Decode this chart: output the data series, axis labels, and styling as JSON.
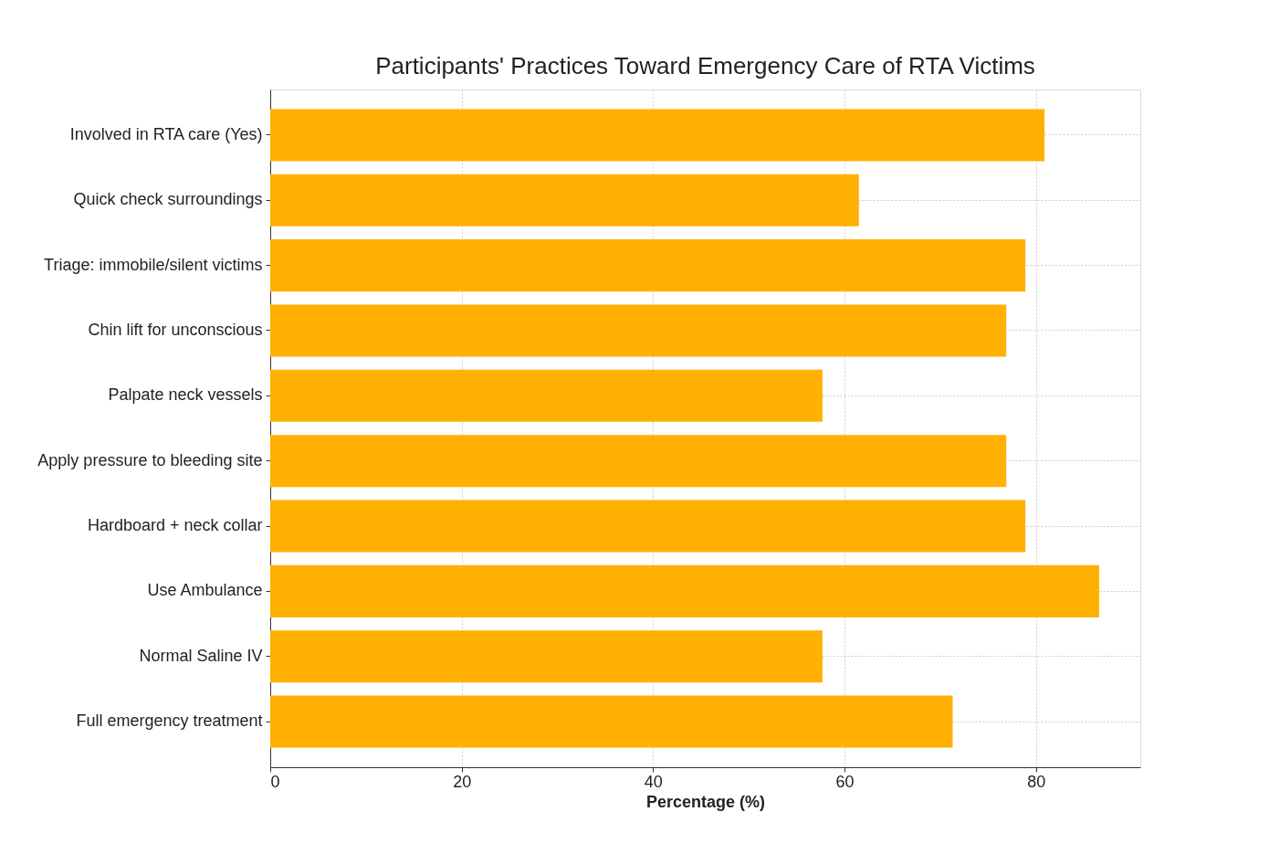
{
  "chart_data": {
    "type": "bar",
    "orientation": "horizontal",
    "title": "Participants' Practices Toward Emergency Care of RTA Victims",
    "categories": [
      "Involved in RTA care (Yes)",
      "Quick check surroundings",
      "Triage: immobile/silent victims",
      "Chin lift for unconscious",
      "Palpate neck vessels",
      "Apply pressure to bleeding site",
      "Hardboard + neck collar",
      "Use Ambulance",
      "Normal Saline IV",
      "Full emergency treatment"
    ],
    "values": [
      80.9,
      61.5,
      78.9,
      76.9,
      57.7,
      76.9,
      78.9,
      86.6,
      57.7,
      71.3
    ],
    "color": "#ffb000",
    "xlabel": "Percentage (%)",
    "xlim": [
      0,
      90.9
    ],
    "xticks": [
      0,
      20,
      40,
      60,
      80
    ],
    "grid": true
  }
}
